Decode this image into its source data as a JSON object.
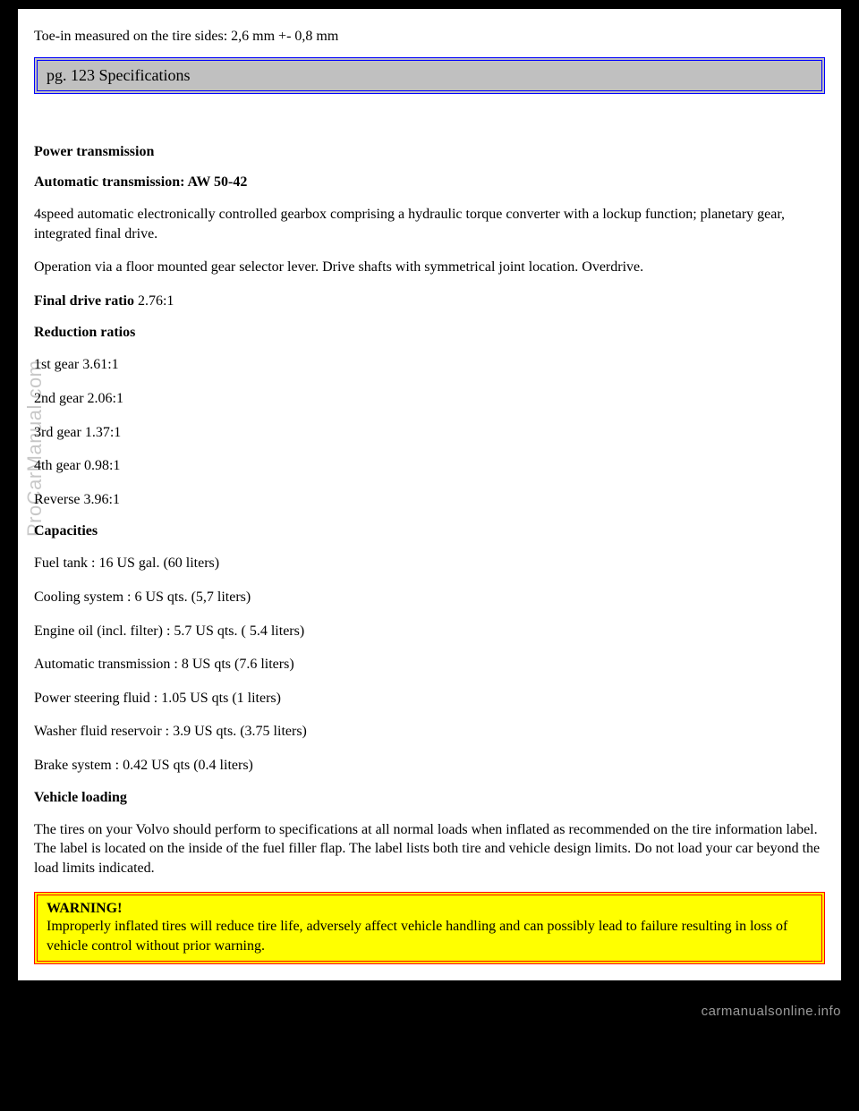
{
  "top": {
    "toe_in": "Toe-in measured on the tire sides: 2,6 mm +- 0,8 mm"
  },
  "header": {
    "text": "pg. 123 Specifications"
  },
  "power_transmission": {
    "title": "Power transmission",
    "sub": "Automatic transmission: AW 50-42",
    "desc1": "4speed automatic electronically controlled gearbox comprising a hydraulic torque converter with a lockup function; planetary gear, integrated final drive.",
    "desc2": "Operation via a floor mounted gear selector lever. Drive shafts with symmetrical joint location. Overdrive.",
    "final_drive_label": "Final drive ratio",
    "final_drive_value": " 2.76:1"
  },
  "reduction": {
    "title": "Reduction ratios",
    "g1": "1st gear 3.61:1",
    "g2": "2nd gear 2.06:1",
    "g3": "3rd gear 1.37:1",
    "g4": "4th gear 0.98:1",
    "rev": "Reverse 3.96:1"
  },
  "capacities": {
    "title": "Capacities",
    "fuel": "Fuel tank : 16 US gal. (60 liters)",
    "cooling": "Cooling system : 6 US qts. (5,7 liters)",
    "oil": "Engine oil (incl. filter) : 5.7 US qts. ( 5.4 liters)",
    "trans": "Automatic transmission : 8 US qts (7.6 liters)",
    "ps": "Power steering fluid : 1.05 US qts (1 liters)",
    "washer": "Washer fluid reservoir : 3.9 US qts. (3.75 liters)",
    "brake": "Brake system : 0.42 US qts (0.4 liters)"
  },
  "vehicle_loading": {
    "title": "Vehicle loading",
    "text": "The tires on your Volvo should perform to specifications at all normal loads when inflated as recommended on the tire information label. The label is located on the inside of the fuel filler flap. The label lists both tire and vehicle design limits. Do not load your car beyond the load limits indicated."
  },
  "warning": {
    "title": "WARNING!",
    "text": "Improperly inflated tires will reduce tire life, adversely affect vehicle handling and can possibly lead to failure resulting in loss of vehicle control without prior warning."
  },
  "watermark": "ProCarManual.com",
  "footer": "carmanualsonline.info"
}
